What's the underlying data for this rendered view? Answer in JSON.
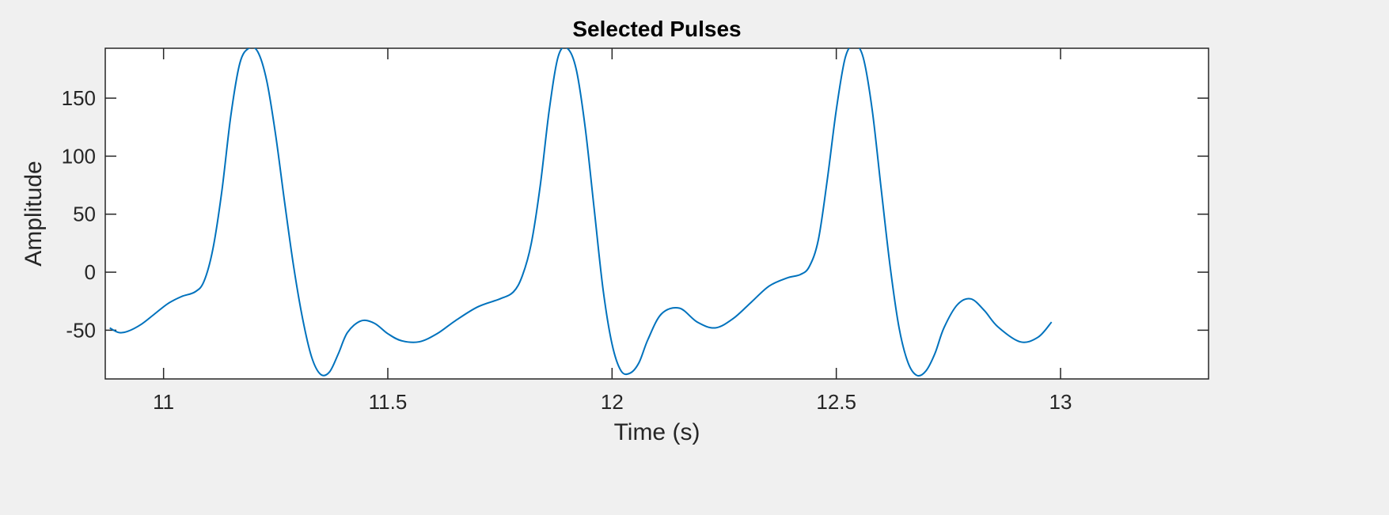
{
  "chart_data": {
    "type": "line",
    "title": "Selected Pulses",
    "xlabel": "Time (s)",
    "ylabel": "Amplitude",
    "xlim": [
      10.87,
      13.33
    ],
    "ylim": [
      -92,
      193
    ],
    "xticks": [
      11,
      11.5,
      12,
      12.5,
      13
    ],
    "xtick_labels": [
      "11",
      "11.5",
      "12",
      "12.5",
      "13"
    ],
    "yticks": [
      -50,
      0,
      50,
      100,
      150
    ],
    "ytick_labels": [
      "-50",
      "0",
      "50",
      "100",
      "150"
    ],
    "grid": false,
    "legend": "none",
    "series": [
      {
        "color": "#0072bd",
        "x": [
          10.88,
          10.9,
          10.92,
          10.95,
          10.98,
          11.01,
          11.04,
          11.07,
          11.09,
          11.11,
          11.13,
          11.15,
          11.17,
          11.19,
          11.21,
          11.23,
          11.25,
          11.27,
          11.29,
          11.31,
          11.33,
          11.35,
          11.37,
          11.39,
          11.41,
          11.44,
          11.47,
          11.5,
          11.53,
          11.57,
          11.61,
          11.65,
          11.7,
          11.75,
          11.78,
          11.8,
          11.82,
          11.84,
          11.86,
          11.88,
          11.9,
          11.92,
          11.94,
          11.96,
          11.98,
          12.0,
          12.02,
          12.04,
          12.06,
          12.08,
          12.11,
          12.15,
          12.19,
          12.23,
          12.27,
          12.31,
          12.35,
          12.39,
          12.42,
          12.44,
          12.46,
          12.48,
          12.5,
          12.52,
          12.54,
          12.56,
          12.58,
          12.6,
          12.62,
          12.64,
          12.66,
          12.68,
          12.7,
          12.72,
          12.74,
          12.77,
          12.8,
          12.83,
          12.86,
          12.91,
          12.95,
          12.98
        ],
        "y": [
          -48,
          -52,
          -51,
          -45,
          -36,
          -27,
          -21,
          -17,
          -8,
          20,
          70,
          135,
          180,
          193,
          190,
          165,
          118,
          60,
          5,
          -40,
          -73,
          -88,
          -86,
          -70,
          -52,
          -42,
          -44,
          -53,
          -59,
          -60,
          -53,
          -42,
          -30,
          -23,
          -17,
          -3,
          25,
          75,
          140,
          186,
          193,
          175,
          125,
          55,
          -15,
          -62,
          -85,
          -87,
          -78,
          -58,
          -36,
          -31,
          -43,
          -48,
          -40,
          -26,
          -12,
          -5,
          -2,
          5,
          28,
          80,
          140,
          185,
          196,
          185,
          140,
          72,
          5,
          -48,
          -78,
          -89,
          -85,
          -70,
          -48,
          -28,
          -23,
          -33,
          -47,
          -60,
          -56,
          -43
        ]
      }
    ]
  }
}
